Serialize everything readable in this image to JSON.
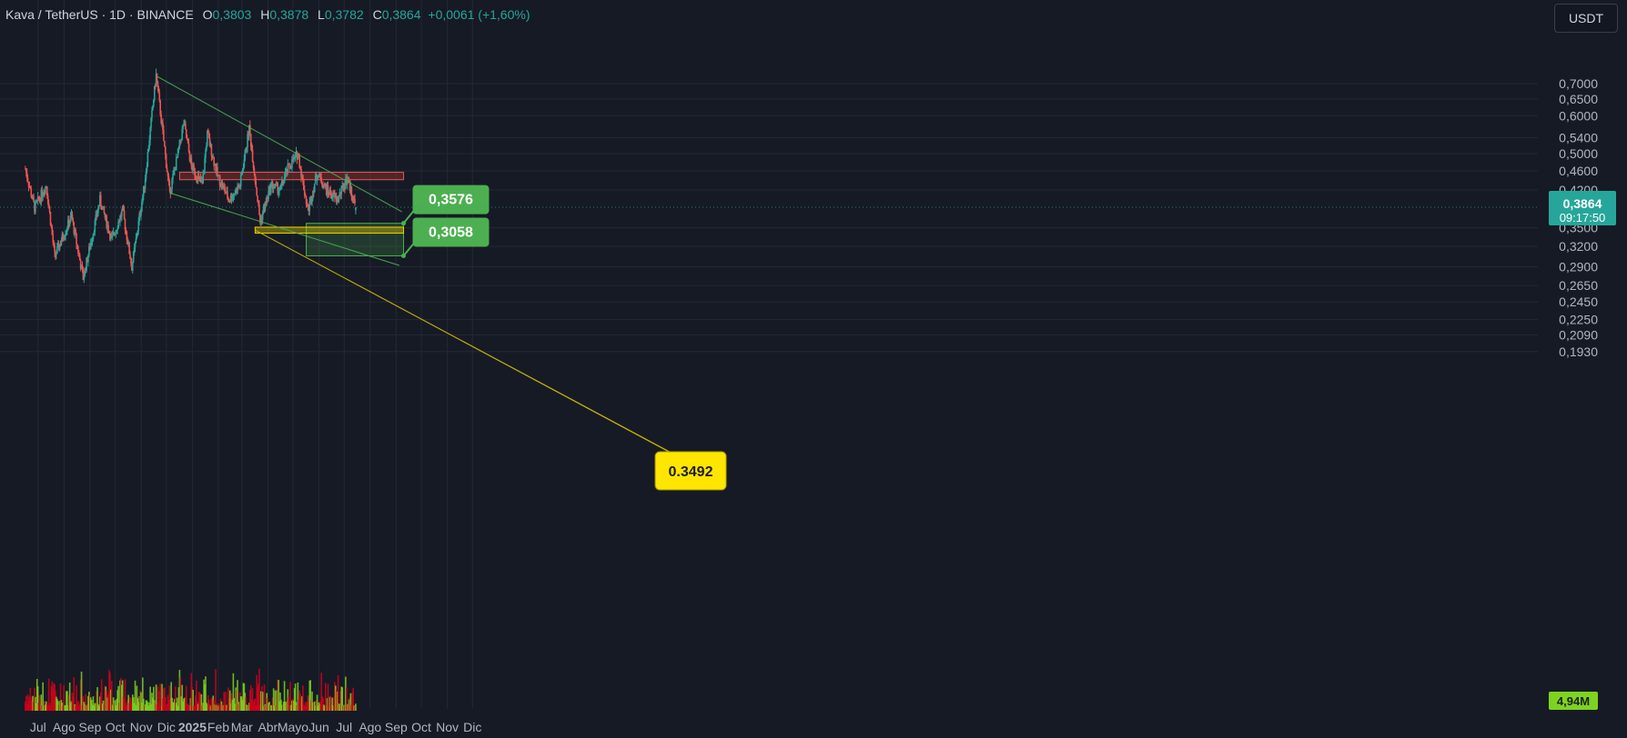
{
  "header": {
    "symbol": "Kava / TetherUS · 1D · BINANCE",
    "o_label": "O",
    "o_value": "0,3803",
    "h_label": "H",
    "h_value": "0,3878",
    "l_label": "L",
    "l_value": "0,3782",
    "c_label": "C",
    "c_value": "0,3864",
    "change": "+0,0061 (+1,60%)"
  },
  "currency_button": "USDT",
  "colors": {
    "background": "#161a25",
    "up": "#26a69a",
    "down": "#ef5350",
    "volume_up": "#7ed321",
    "volume_down": "#d0021b",
    "trendline": "#4caf50",
    "resistance_zone": "#c0392b",
    "support_zone": "#c8b400",
    "target_zone": "#4caf50"
  },
  "chart_data": {
    "type": "candlestick",
    "price_scale": "log",
    "ylim": [
      0.18,
      0.76
    ],
    "y_ticks": [
      "0,7000",
      "0,6500",
      "0,6000",
      "0,5400",
      "0,5000",
      "0,4600",
      "0,4200",
      "0,3500",
      "0,3200",
      "0,2900",
      "0,2650",
      "0,2450",
      "0,2250",
      "0,2090",
      "0,1930"
    ],
    "x_ticks": [
      "Jul",
      "Ago",
      "Sep",
      "Oct",
      "Nov",
      "Dic",
      "2025",
      "Feb",
      "Mar",
      "Abr",
      "Mayo",
      "Jun",
      "Jul",
      "Ago",
      "Sep",
      "Oct",
      "Nov",
      "Dic"
    ],
    "current_price": "0,3864",
    "countdown": "09:17:50",
    "volume_label": "4,94M",
    "price_path": [
      [
        "2024-07-01",
        0.465
      ],
      [
        "2024-07-12",
        0.385
      ],
      [
        "2024-07-26",
        0.43
      ],
      [
        "2024-08-05",
        0.305
      ],
      [
        "2024-08-25",
        0.37
      ],
      [
        "2024-09-08",
        0.275
      ],
      [
        "2024-09-28",
        0.4
      ],
      [
        "2024-10-12",
        0.33
      ],
      [
        "2024-10-25",
        0.38
      ],
      [
        "2024-11-05",
        0.29
      ],
      [
        "2024-11-20",
        0.43
      ],
      [
        "2024-12-04",
        0.73
      ],
      [
        "2024-12-10",
        0.59
      ],
      [
        "2024-12-20",
        0.415
      ],
      [
        "2024-12-28",
        0.48
      ],
      [
        "2025-01-06",
        0.58
      ],
      [
        "2025-01-15",
        0.47
      ],
      [
        "2025-01-28",
        0.43
      ],
      [
        "2025-02-03",
        0.55
      ],
      [
        "2025-02-15",
        0.45
      ],
      [
        "2025-03-01",
        0.4
      ],
      [
        "2025-03-14",
        0.43
      ],
      [
        "2025-03-25",
        0.565
      ],
      [
        "2025-04-07",
        0.36
      ],
      [
        "2025-04-20",
        0.43
      ],
      [
        "2025-05-01",
        0.42
      ],
      [
        "2025-05-10",
        0.465
      ],
      [
        "2025-05-22",
        0.5
      ],
      [
        "2025-06-03",
        0.38
      ],
      [
        "2025-06-14",
        0.455
      ],
      [
        "2025-06-25",
        0.42
      ],
      [
        "2025-07-08",
        0.4
      ],
      [
        "2025-07-20",
        0.445
      ],
      [
        "2025-07-30",
        0.386
      ]
    ],
    "annotations": {
      "resistance_zone": {
        "from": "2025-01-01",
        "to": "2025-09-25",
        "low": 0.441,
        "high": 0.457
      },
      "support_zone": {
        "from": "2025-04-01",
        "to": "2025-09-25",
        "low": 0.341,
        "high": 0.351
      },
      "target_zone": {
        "from": "2025-06-01",
        "to": "2025-09-25",
        "low": 0.3058,
        "high": 0.3576
      },
      "target_labels": [
        "0,3576",
        "0,3058"
      ],
      "callout": "0.3492",
      "wedge_upper": [
        [
          "2024-12-05",
          0.725
        ],
        [
          "2025-09-23",
          0.378
        ]
      ],
      "wedge_lower": [
        [
          "2024-12-20",
          0.414
        ],
        [
          "2025-09-20",
          0.292
        ]
      ]
    }
  }
}
